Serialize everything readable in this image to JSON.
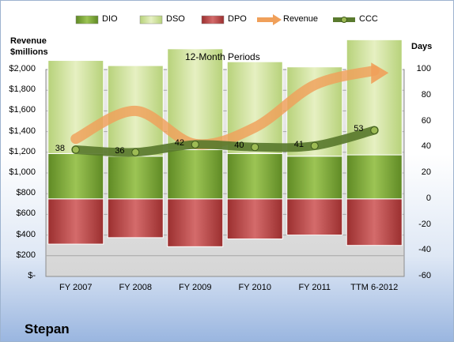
{
  "company": "Stepan",
  "chart_data": {
    "type": "bar",
    "title": "12-Month Periods",
    "ylabel_left": "Revenue\n$millions",
    "ylabel_right": "Days",
    "categories": [
      "FY 2007",
      "FY 2008",
      "FY 2009",
      "FY 2010",
      "FY 2011",
      "TTM 6-2012"
    ],
    "ylim_left": [
      0,
      2000
    ],
    "ylim_right": [
      -60,
      100
    ],
    "left_ticks": [
      "$-",
      "$200",
      "$400",
      "$600",
      "$800",
      "$1,000",
      "$1,200",
      "$1,400",
      "$1,600",
      "$1,800",
      "$2,000"
    ],
    "right_ticks": [
      "-60",
      "-40",
      "-20",
      "0",
      "20",
      "40",
      "60",
      "80",
      "100"
    ],
    "legend": [
      "DIO",
      "DSO",
      "DPO",
      "Revenue",
      "CCC"
    ],
    "series": [
      {
        "name": "DIO",
        "axis": "right",
        "values": [
          35,
          33,
          38,
          35,
          33,
          34
        ]
      },
      {
        "name": "DSO",
        "axis": "right",
        "values": [
          72,
          70,
          78,
          71,
          69,
          89
        ]
      },
      {
        "name": "DPO",
        "axis": "right",
        "values": [
          -35,
          -30,
          -37,
          -31,
          -28,
          -36
        ]
      },
      {
        "name": "Revenue",
        "axis": "left",
        "values": [
          1330,
          1600,
          1280,
          1440,
          1850,
          1990
        ]
      },
      {
        "name": "CCC",
        "axis": "right",
        "values": [
          38,
          36,
          42,
          40,
          41,
          53
        ]
      }
    ],
    "ccc_labels": [
      "38",
      "36",
      "42",
      "40",
      "41",
      "53"
    ],
    "colors": {
      "dio": "#7aa33a",
      "dso": "#cfe29a",
      "dpo": "#b94747",
      "revenue": "#f0a05a",
      "ccc": "#5a7a2e"
    }
  }
}
